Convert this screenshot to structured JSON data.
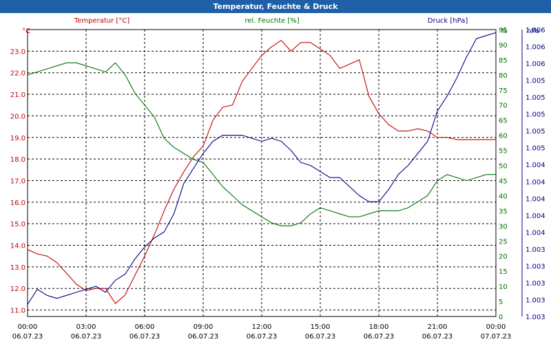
{
  "window": {
    "title": "Temperatur, Feuchte & Druck"
  },
  "chart_data": {
    "type": "line",
    "title": "Temperatur, Feuchte & Druck",
    "x_ticks": [
      {
        "time": "00:00",
        "date": "06.07.23"
      },
      {
        "time": "03:00",
        "date": "06.07.23"
      },
      {
        "time": "06:00",
        "date": "06.07.23"
      },
      {
        "time": "09:00",
        "date": "06.07.23"
      },
      {
        "time": "12:00",
        "date": "06.07.23"
      },
      {
        "time": "15:00",
        "date": "06.07.23"
      },
      {
        "time": "18:00",
        "date": "06.07.23"
      },
      {
        "time": "21:00",
        "date": "06.07.23"
      },
      {
        "time": "00:00",
        "date": "07.07.23"
      }
    ],
    "x_unit": "hours",
    "xlim": [
      0,
      24
    ],
    "axes": {
      "left": {
        "label": "Temperatur [°C]",
        "unit": "°C",
        "color": "#c00000",
        "ylim": [
          10.7,
          24.0
        ],
        "ticks": [
          "11.0",
          "12.0",
          "13.0",
          "14.0",
          "15.0",
          "16.0",
          "17.0",
          "18.0",
          "19.0",
          "20.0",
          "21.0",
          "22.0",
          "23.0"
        ]
      },
      "mid": {
        "label": "rel. Feuchte [%]",
        "unit": "%",
        "color": "#007000",
        "ylim": [
          0,
          95
        ],
        "ticks": [
          "0",
          "5",
          "10",
          "15",
          "20",
          "25",
          "30",
          "35",
          "40",
          "45",
          "50",
          "55",
          "60",
          "65",
          "70",
          "75",
          "80",
          "85",
          "90",
          "95"
        ]
      },
      "right": {
        "label": "Druck [hPa]",
        "unit": "hPa",
        "color": "#00008b",
        "ticks": [
          "1.003",
          "1.003",
          "1.003",
          "1.003",
          "1.003",
          "1.004",
          "1.004",
          "1.004",
          "1.004",
          "1.004",
          "1.005",
          "1.005",
          "1.005",
          "1.005",
          "1.005",
          "1.006",
          "1.006",
          "1.006"
        ]
      }
    },
    "grid": true,
    "series": [
      {
        "name": "Temperatur [°C]",
        "color": "#c00000",
        "axis": "left",
        "x": [
          0,
          0.5,
          1,
          1.5,
          2,
          2.5,
          3,
          3.5,
          4,
          4.5,
          5,
          5.5,
          6,
          6.5,
          7,
          7.5,
          8,
          8.5,
          9,
          9.5,
          10,
          10.5,
          11,
          11.5,
          12,
          12.5,
          13,
          13.5,
          14,
          14.5,
          15,
          15.5,
          16,
          16.5,
          17,
          17.5,
          18,
          18.5,
          19,
          19.5,
          20,
          20.5,
          21,
          21.5,
          22,
          22.5,
          23,
          23.5,
          24
        ],
        "values": [
          13.8,
          13.6,
          13.5,
          13.2,
          12.7,
          12.2,
          11.9,
          12.0,
          12.0,
          11.3,
          11.7,
          12.6,
          13.5,
          14.5,
          15.6,
          16.6,
          17.4,
          18.1,
          18.6,
          19.8,
          20.4,
          20.5,
          21.6,
          22.2,
          22.8,
          23.2,
          23.5,
          23.0,
          23.4,
          23.4,
          23.1,
          22.8,
          22.2,
          22.4,
          22.6,
          20.9,
          20.1,
          19.6,
          19.3,
          19.3,
          19.4,
          19.3,
          19.0,
          19.0,
          18.9,
          18.9,
          18.9,
          18.9,
          18.9
        ]
      },
      {
        "name": "rel. Feuchte [%]",
        "color": "#007000",
        "axis": "mid",
        "x": [
          0,
          0.5,
          1,
          1.5,
          2,
          2.5,
          3,
          3.5,
          4,
          4.5,
          5,
          5.5,
          6,
          6.5,
          7,
          7.5,
          8,
          8.5,
          9,
          9.5,
          10,
          10.5,
          11,
          11.5,
          12,
          12.5,
          13,
          13.5,
          14,
          14.5,
          15,
          15.5,
          16,
          16.5,
          17,
          17.5,
          18,
          18.5,
          19,
          19.5,
          20,
          20.5,
          21,
          21.5,
          22,
          22.5,
          23,
          23.5,
          24
        ],
        "values": [
          80,
          81,
          82,
          83,
          84,
          84,
          83,
          82,
          81,
          84,
          80,
          74,
          70,
          66,
          59,
          56,
          54,
          52,
          51,
          47,
          43,
          40,
          37,
          35,
          33,
          31,
          30,
          30,
          31,
          34,
          36,
          35,
          34,
          33,
          33,
          34,
          35,
          35,
          35,
          36,
          38,
          40,
          45,
          47,
          46,
          45,
          46,
          47,
          47
        ]
      },
      {
        "name": "Druck [hPa]",
        "color": "#00008b",
        "axis": "mid",
        "x": [
          0,
          0.5,
          1,
          1.5,
          2,
          2.5,
          3,
          3.5,
          4,
          4.5,
          5,
          5.5,
          6,
          6.5,
          7,
          7.5,
          8,
          8.5,
          9,
          9.5,
          10,
          10.5,
          11,
          11.5,
          12,
          12.5,
          13,
          13.5,
          14,
          14.5,
          15,
          15.5,
          16,
          16.5,
          17,
          17.5,
          18,
          18.5,
          19,
          19.5,
          20,
          20.5,
          21,
          21.5,
          22,
          22.5,
          23,
          23.5,
          24
        ],
        "values": [
          4,
          9,
          7,
          6,
          7,
          8,
          9,
          10,
          8,
          12,
          14,
          19,
          23,
          26,
          28,
          34,
          44,
          49,
          54,
          58,
          60,
          60,
          60,
          59,
          58,
          59,
          58,
          55,
          51,
          50,
          48,
          46,
          46,
          43,
          40,
          38,
          38,
          42,
          47,
          50,
          54,
          58,
          68,
          73,
          79,
          86,
          92,
          93,
          94
        ]
      }
    ]
  }
}
